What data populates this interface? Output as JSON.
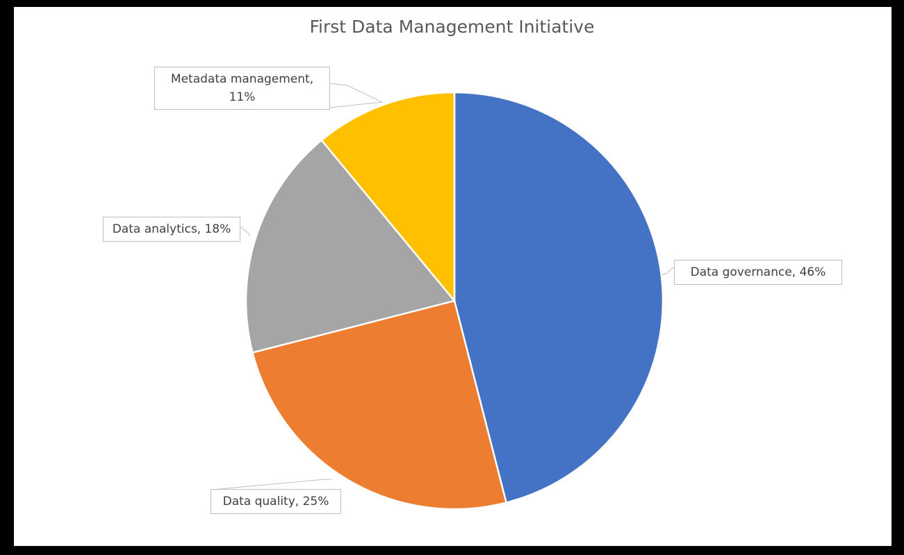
{
  "chart_data": {
    "type": "pie",
    "title": "First Data Management Initiative",
    "values": [
      46,
      25,
      18,
      11
    ],
    "value_labels": [
      "Data governance, 46%",
      "Data quality, 25%",
      "Data analytics, 18%",
      "Metadata management, 11%"
    ],
    "colors": [
      "#4472c4",
      "#ed7d31",
      "#a5a5a5",
      "#ffc000"
    ]
  }
}
